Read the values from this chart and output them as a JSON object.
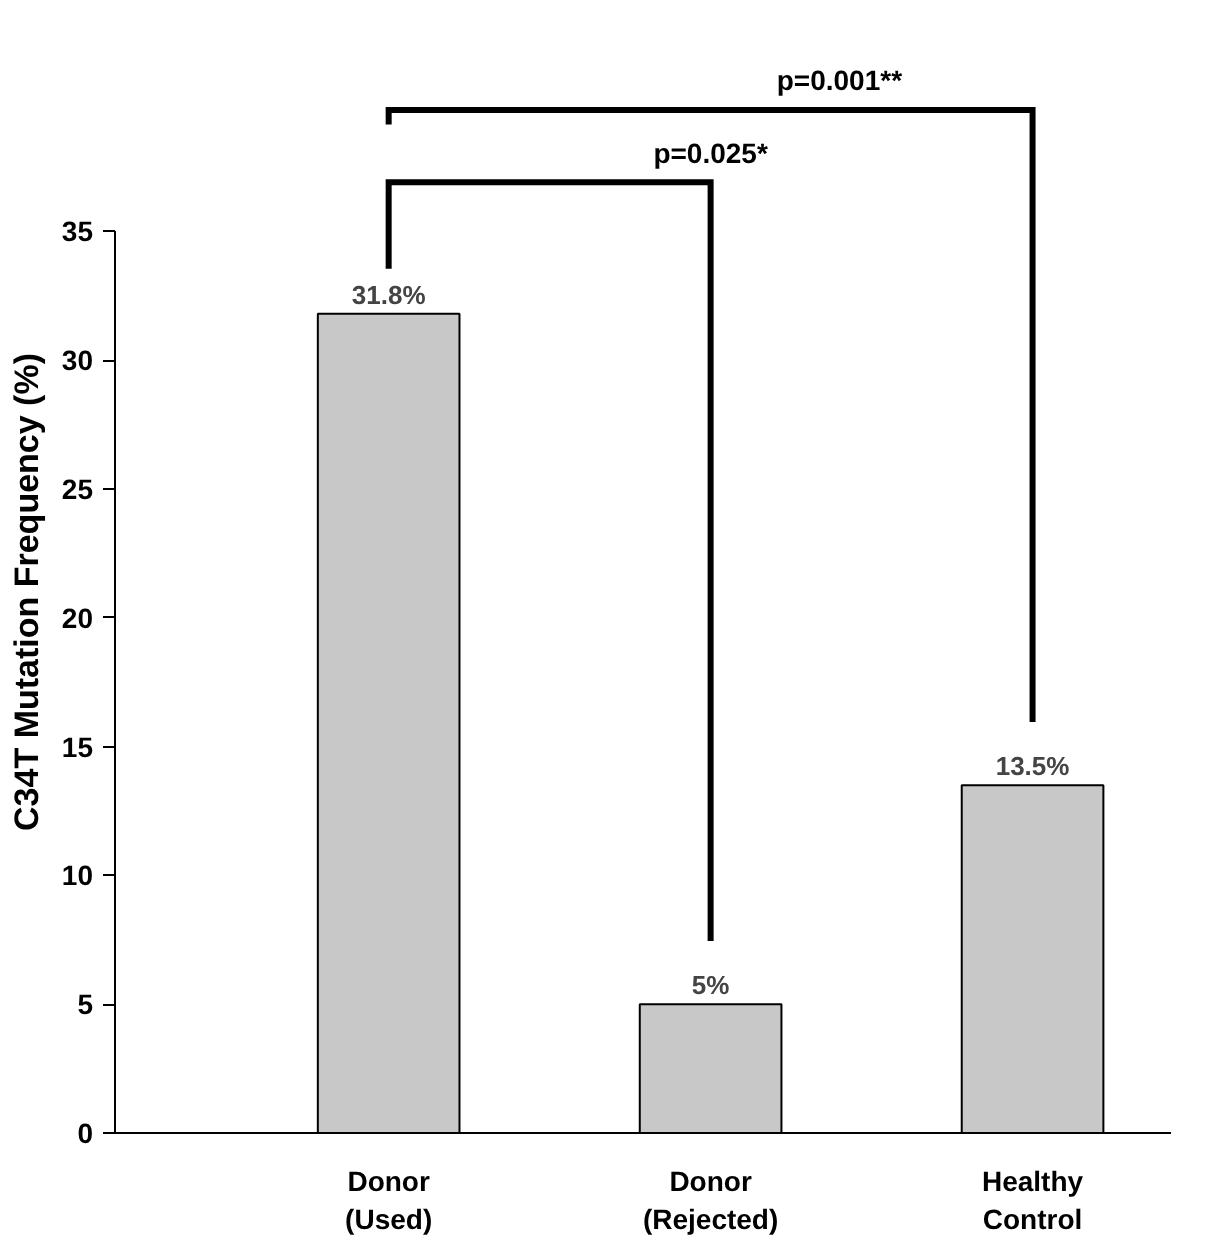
{
  "chart_data": {
    "type": "bar",
    "ylabel": "C34T Mutation Frequency (%)",
    "categories": [
      "Donor\n(Used)",
      "Donor\n(Rejected)",
      "Healthy\nControl"
    ],
    "values": [
      31.8,
      5,
      13.5
    ],
    "value_labels": [
      "31.8%",
      "5%",
      "13.5%"
    ],
    "color": "#c8c8c8",
    "ylim": [
      0,
      35
    ],
    "yticks": [
      0,
      5,
      10,
      15,
      20,
      25,
      30,
      35
    ],
    "grid": false,
    "annotations": [
      "p=0.025*",
      "p=0.001**"
    ]
  }
}
